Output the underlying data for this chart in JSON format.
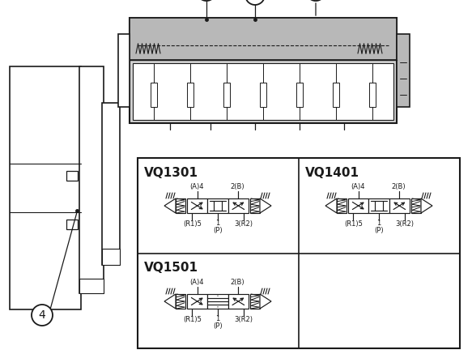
{
  "bg_color": "#ffffff",
  "line_color": "#1a1a1a",
  "gray_fill": "#b8b8b8",
  "gray_fill2": "#d0d0d0",
  "fig_width": 5.83,
  "fig_height": 4.37,
  "dpi": 100,
  "valve_models": [
    "VQ1301",
    "VQ1401",
    "VQ1501"
  ],
  "port_labels_top_A": "(A)4",
  "port_labels_top_B": "2(B)",
  "port_labels_R1": "(R1)5",
  "port_labels_1": "1",
  "port_labels_3": "3(R2)",
  "port_label_p": "(P)"
}
